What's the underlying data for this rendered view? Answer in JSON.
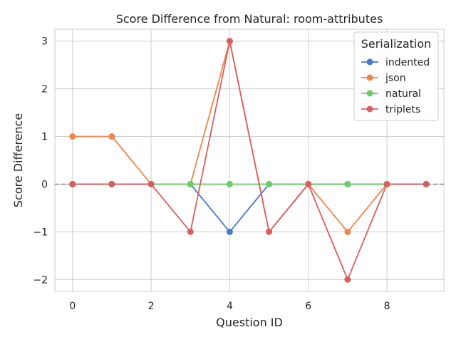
{
  "chart_data": {
    "type": "line",
    "title": "Score Difference from Natural: room-attributes",
    "xlabel": "Question ID",
    "ylabel": "Score Difference",
    "x": [
      0,
      1,
      2,
      3,
      4,
      5,
      6,
      7,
      8,
      9
    ],
    "xlim": [
      -0.45,
      9.45
    ],
    "ylim": [
      -2.25,
      3.25
    ],
    "xticks": [
      0,
      2,
      4,
      6,
      8
    ],
    "yticks": [
      -2,
      -1,
      0,
      1,
      2,
      3
    ],
    "ytick_labels": [
      "−2",
      "−1",
      "0",
      "1",
      "2",
      "3"
    ],
    "grid": true,
    "reference_line": {
      "y": 0,
      "color": "#808080",
      "style": "dashed"
    },
    "legend": {
      "title": "Serialization",
      "placement": "top-right"
    },
    "series": [
      {
        "name": "indented",
        "color": "#4878d0",
        "values": [
          0,
          0,
          0,
          0,
          -1,
          0,
          0,
          0,
          0,
          0
        ]
      },
      {
        "name": "json",
        "color": "#ee854a",
        "values": [
          1,
          1,
          0,
          0,
          3,
          -1,
          0,
          -1,
          0,
          0
        ]
      },
      {
        "name": "natural",
        "color": "#6acc64",
        "values": [
          0,
          0,
          0,
          0,
          0,
          0,
          0,
          0,
          0,
          0
        ]
      },
      {
        "name": "triplets",
        "color": "#d65f5f",
        "values": [
          0,
          0,
          0,
          -1,
          3,
          -1,
          0,
          -2,
          0,
          0
        ]
      }
    ]
  }
}
